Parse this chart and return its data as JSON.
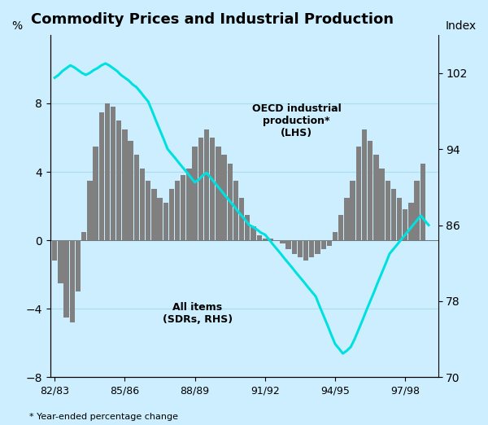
{
  "title": "Commodity Prices and Industrial Production",
  "background_color": "#cceeff",
  "ylabel_left": "%",
  "ylabel_right": "Index",
  "xlabel_footnote": "* Year-ended percentage change",
  "ylim_left": [
    -8,
    12
  ],
  "ylim_right": [
    70,
    106
  ],
  "yticks_left": [
    -8,
    -4,
    0,
    4,
    8
  ],
  "yticks_right": [
    70,
    78,
    86,
    94,
    102
  ],
  "xtick_labels": [
    "82/83",
    "85/86",
    "88/89",
    "91/92",
    "94/95",
    "97/98"
  ],
  "xtick_positions": [
    1982,
    1985,
    1988,
    1991,
    1994,
    1997
  ],
  "bar_color": "#808080",
  "line_color": "#00e0e0",
  "annotation_oecd": "OECD industrial\nproduction*\n(LHS)",
  "annotation_all": "All items\n(SDRs, RHS)",
  "bar_years": [
    1982.0,
    1982.25,
    1982.5,
    1982.75,
    1983.0,
    1983.25,
    1983.5,
    1983.75,
    1984.0,
    1984.25,
    1984.5,
    1984.75,
    1985.0,
    1985.25,
    1985.5,
    1985.75,
    1986.0,
    1986.25,
    1986.5,
    1986.75,
    1987.0,
    1987.25,
    1987.5,
    1987.75,
    1988.0,
    1988.25,
    1988.5,
    1988.75,
    1989.0,
    1989.25,
    1989.5,
    1989.75,
    1990.0,
    1990.25,
    1990.5,
    1990.75,
    1991.0,
    1991.25,
    1991.5,
    1991.75,
    1992.0,
    1992.25,
    1992.5,
    1992.75,
    1993.0,
    1993.25,
    1993.5,
    1993.75,
    1994.0,
    1994.25,
    1994.5,
    1994.75,
    1995.0,
    1995.25,
    1995.5,
    1995.75,
    1996.0,
    1996.25,
    1996.5,
    1996.75,
    1997.0,
    1997.25,
    1997.5,
    1997.75
  ],
  "bar_values": [
    -1.2,
    -2.5,
    -4.5,
    -4.8,
    -3.0,
    0.5,
    3.5,
    5.5,
    7.5,
    8.0,
    7.8,
    7.0,
    6.5,
    5.8,
    5.0,
    4.2,
    3.5,
    3.0,
    2.5,
    2.2,
    3.0,
    3.5,
    3.8,
    4.2,
    5.5,
    6.0,
    6.5,
    6.0,
    5.5,
    5.0,
    4.5,
    3.5,
    2.5,
    1.5,
    0.8,
    0.3,
    0.1,
    0.1,
    0.0,
    -0.2,
    -0.5,
    -0.8,
    -1.0,
    -1.2,
    -1.0,
    -0.8,
    -0.5,
    -0.3,
    0.5,
    1.5,
    2.5,
    3.5,
    5.5,
    6.5,
    5.8,
    5.0,
    4.2,
    3.5,
    3.0,
    2.5,
    1.8,
    2.2,
    3.5,
    4.5
  ],
  "line_x": [
    1982.0,
    1982.17,
    1982.33,
    1982.5,
    1982.67,
    1982.83,
    1983.0,
    1983.17,
    1983.33,
    1983.5,
    1983.67,
    1983.83,
    1984.0,
    1984.17,
    1984.33,
    1984.5,
    1984.67,
    1984.83,
    1985.0,
    1985.17,
    1985.33,
    1985.5,
    1985.67,
    1985.83,
    1986.0,
    1986.17,
    1986.33,
    1986.5,
    1986.67,
    1986.83,
    1987.0,
    1987.17,
    1987.33,
    1987.5,
    1987.67,
    1987.83,
    1988.0,
    1988.17,
    1988.33,
    1988.5,
    1988.67,
    1988.83,
    1989.0,
    1989.17,
    1989.33,
    1989.5,
    1989.67,
    1989.83,
    1990.0,
    1990.17,
    1990.33,
    1990.5,
    1990.67,
    1990.83,
    1991.0,
    1991.17,
    1991.33,
    1991.5,
    1991.67,
    1991.83,
    1992.0,
    1992.17,
    1992.33,
    1992.5,
    1992.67,
    1992.83,
    1993.0,
    1993.17,
    1993.33,
    1993.5,
    1993.67,
    1993.83,
    1994.0,
    1994.17,
    1994.33,
    1994.5,
    1994.67,
    1994.83,
    1995.0,
    1995.17,
    1995.33,
    1995.5,
    1995.67,
    1995.83,
    1996.0,
    1996.17,
    1996.33,
    1996.5,
    1996.67,
    1996.83,
    1997.0,
    1997.17,
    1997.33,
    1997.5,
    1997.67,
    1997.83,
    1998.0
  ],
  "line_y": [
    101.5,
    101.8,
    102.2,
    102.5,
    102.8,
    102.6,
    102.3,
    102.0,
    101.8,
    102.0,
    102.3,
    102.5,
    102.8,
    103.0,
    102.8,
    102.5,
    102.2,
    101.8,
    101.5,
    101.2,
    100.8,
    100.5,
    100.0,
    99.5,
    99.0,
    98.0,
    97.0,
    96.0,
    95.0,
    94.0,
    93.5,
    93.0,
    92.5,
    92.0,
    91.5,
    91.0,
    90.5,
    90.8,
    91.2,
    91.5,
    91.0,
    90.5,
    90.0,
    89.5,
    89.0,
    88.5,
    88.0,
    87.5,
    87.0,
    86.5,
    86.0,
    85.8,
    85.5,
    85.2,
    85.0,
    84.5,
    84.0,
    83.5,
    83.0,
    82.5,
    82.0,
    81.5,
    81.0,
    80.5,
    80.0,
    79.5,
    79.0,
    78.5,
    77.5,
    76.5,
    75.5,
    74.5,
    73.5,
    73.0,
    72.5,
    72.8,
    73.2,
    74.0,
    75.0,
    76.0,
    77.0,
    78.0,
    79.0,
    80.0,
    81.0,
    82.0,
    83.0,
    83.5,
    84.0,
    84.5,
    85.0,
    85.5,
    86.0,
    86.5,
    87.0,
    86.5,
    86.0
  ]
}
